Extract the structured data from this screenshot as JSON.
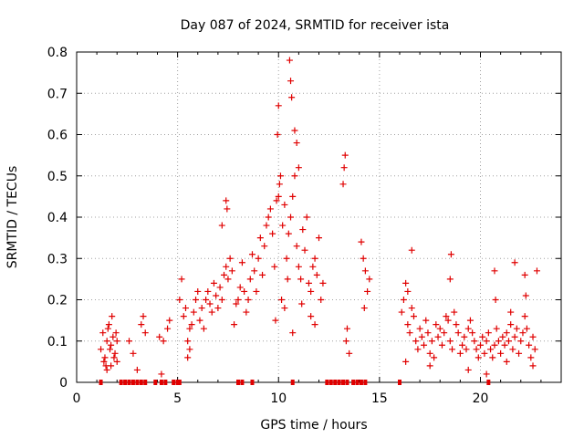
{
  "chart_data": {
    "type": "scatter",
    "title": "Day 087 of 2024, SRMTID for receiver ista",
    "xlabel": "GPS time / hours",
    "ylabel": "SRMTID / TECUs",
    "xlim": [
      0,
      24
    ],
    "ylim": [
      0,
      0.8
    ],
    "xticks": [
      0,
      5,
      10,
      15,
      20
    ],
    "xtick_labels": [
      "0",
      "5",
      "10",
      "15",
      "20"
    ],
    "yticks": [
      0,
      0.1,
      0.2,
      0.3,
      0.4,
      0.5,
      0.6,
      0.7,
      0.8
    ],
    "ytick_labels": [
      "0",
      "0.1",
      "0.2",
      "0.3",
      "0.4",
      "0.5",
      "0.6",
      "0.7",
      "0.8"
    ],
    "grid": true,
    "marker": "+",
    "color": "#e00000",
    "series": [
      {
        "name": "SRMTID",
        "x": [
          1.2,
          1.3,
          1.4,
          1.5,
          1.6,
          1.7,
          1.8,
          1.9,
          2.0,
          1.35,
          1.55,
          1.75,
          1.95,
          1.45,
          1.65,
          1.85,
          2.6,
          3.2,
          3.3,
          3.4,
          4.1,
          4.3,
          4.5,
          4.6,
          5.1,
          5.2,
          5.3,
          5.4,
          5.5,
          5.6,
          5.7,
          5.8,
          5.9,
          6.0,
          6.1,
          6.2,
          6.3,
          6.4,
          6.5,
          6.6,
          6.7,
          6.8,
          6.9,
          7.0,
          7.1,
          7.2,
          7.3,
          7.4,
          7.5,
          7.6,
          7.7,
          7.8,
          7.9,
          8.0,
          8.1,
          8.2,
          8.3,
          8.4,
          8.5,
          8.6,
          8.7,
          8.8,
          8.9,
          9.0,
          9.1,
          9.2,
          9.3,
          9.4,
          9.5,
          9.6,
          9.7,
          9.8,
          9.9,
          10.0,
          10.05,
          10.1,
          10.2,
          10.3,
          10.4,
          10.5,
          10.6,
          10.7,
          10.8,
          10.9,
          11.0,
          11.1,
          11.2,
          11.3,
          11.4,
          11.5,
          11.6,
          11.7,
          11.8,
          11.9,
          12.0,
          12.1,
          12.2,
          9.95,
          10.0,
          10.55,
          10.6,
          10.65,
          10.8,
          10.9,
          11.0,
          7.4,
          7.45,
          7.2,
          9.85,
          10.15,
          10.3,
          10.45,
          10.7,
          11.15,
          11.6,
          11.8,
          13.2,
          13.25,
          13.3,
          13.35,
          13.4,
          13.5,
          14.1,
          14.2,
          14.3,
          14.4,
          14.5,
          14.25,
          16.1,
          16.2,
          16.3,
          16.4,
          16.5,
          16.6,
          16.7,
          16.8,
          16.9,
          17.0,
          17.1,
          17.2,
          17.3,
          17.4,
          17.5,
          17.6,
          17.7,
          17.8,
          17.9,
          18.0,
          18.1,
          18.2,
          18.3,
          18.4,
          18.5,
          18.6,
          18.7,
          18.8,
          18.9,
          19.0,
          19.1,
          19.2,
          19.3,
          19.4,
          19.5,
          19.6,
          19.7,
          19.8,
          19.9,
          20.0,
          20.1,
          20.2,
          20.3,
          20.4,
          20.5,
          20.6,
          20.7,
          20.8,
          20.9,
          21.0,
          21.1,
          21.2,
          21.3,
          21.4,
          21.5,
          21.6,
          21.7,
          21.8,
          21.9,
          22.0,
          22.1,
          22.2,
          22.3,
          22.4,
          22.5,
          22.6,
          22.7,
          22.8,
          16.4,
          16.6,
          18.5,
          18.55,
          20.7,
          20.75,
          21.5,
          21.7,
          22.2,
          22.25,
          16.3,
          17.5,
          19.4,
          20.3,
          21.3,
          22.6,
          1.5,
          1.7,
          2.0,
          5.5,
          5.6,
          4.2,
          2.8,
          3.0
        ],
        "y": [
          0.08,
          0.12,
          0.06,
          0.1,
          0.14,
          0.09,
          0.11,
          0.07,
          0.1,
          0.05,
          0.13,
          0.16,
          0.12,
          0.04,
          0.08,
          0.06,
          0.1,
          0.14,
          0.16,
          0.12,
          0.11,
          0.1,
          0.13,
          0.15,
          0.2,
          0.25,
          0.16,
          0.18,
          0.06,
          0.08,
          0.14,
          0.17,
          0.2,
          0.22,
          0.15,
          0.18,
          0.13,
          0.2,
          0.22,
          0.19,
          0.17,
          0.24,
          0.21,
          0.18,
          0.23,
          0.2,
          0.26,
          0.28,
          0.25,
          0.3,
          0.27,
          0.14,
          0.19,
          0.2,
          0.23,
          0.29,
          0.22,
          0.17,
          0.2,
          0.25,
          0.31,
          0.27,
          0.22,
          0.3,
          0.35,
          0.26,
          0.33,
          0.38,
          0.4,
          0.42,
          0.36,
          0.28,
          0.44,
          0.45,
          0.48,
          0.5,
          0.38,
          0.43,
          0.3,
          0.36,
          0.4,
          0.45,
          0.5,
          0.33,
          0.28,
          0.25,
          0.37,
          0.32,
          0.4,
          0.24,
          0.22,
          0.28,
          0.3,
          0.26,
          0.35,
          0.2,
          0.24,
          0.6,
          0.67,
          0.78,
          0.73,
          0.69,
          0.61,
          0.58,
          0.52,
          0.44,
          0.42,
          0.38,
          0.15,
          0.2,
          0.18,
          0.25,
          0.12,
          0.19,
          0.16,
          0.14,
          0.48,
          0.52,
          0.55,
          0.1,
          0.13,
          0.07,
          0.34,
          0.3,
          0.27,
          0.22,
          0.25,
          0.18,
          0.17,
          0.2,
          0.24,
          0.14,
          0.12,
          0.18,
          0.16,
          0.1,
          0.08,
          0.13,
          0.11,
          0.09,
          0.15,
          0.12,
          0.07,
          0.1,
          0.06,
          0.14,
          0.11,
          0.13,
          0.09,
          0.12,
          0.16,
          0.15,
          0.1,
          0.08,
          0.17,
          0.14,
          0.12,
          0.07,
          0.09,
          0.11,
          0.08,
          0.13,
          0.15,
          0.12,
          0.1,
          0.08,
          0.06,
          0.09,
          0.11,
          0.07,
          0.1,
          0.12,
          0.08,
          0.06,
          0.09,
          0.13,
          0.1,
          0.07,
          0.11,
          0.09,
          0.12,
          0.1,
          0.14,
          0.08,
          0.11,
          0.13,
          0.07,
          0.1,
          0.12,
          0.16,
          0.13,
          0.09,
          0.06,
          0.11,
          0.08,
          0.27,
          0.22,
          0.32,
          0.25,
          0.31,
          0.27,
          0.2,
          0.17,
          0.29,
          0.26,
          0.21,
          0.05,
          0.04,
          0.03,
          0.02,
          0.05,
          0.04,
          0.03,
          0.04,
          0.05,
          0.1,
          0.13,
          0.02,
          0.07,
          0.03
        ],
        "flagged_zero_x": [
          1.2,
          2.2,
          2.4,
          2.6,
          2.8,
          3.0,
          3.2,
          3.4,
          3.9,
          4.2,
          4.4,
          4.8,
          5.0,
          5.1,
          8.0,
          8.2,
          8.7,
          10.7,
          12.4,
          12.6,
          12.8,
          13.0,
          13.2,
          13.4,
          13.7,
          13.9,
          14.1,
          14.3,
          16.0,
          20.4
        ]
      }
    ]
  }
}
